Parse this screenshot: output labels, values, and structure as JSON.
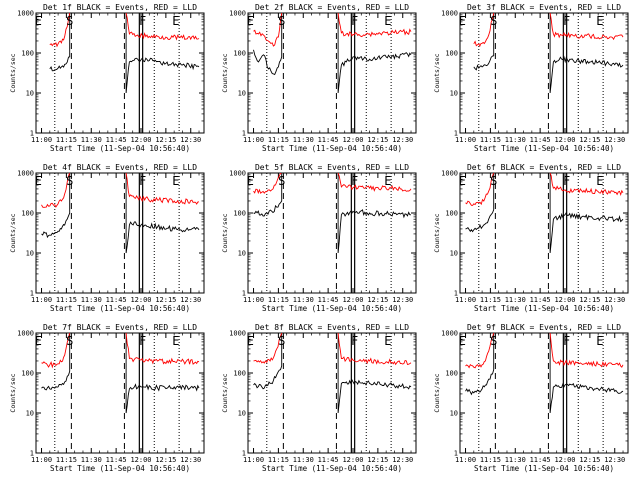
{
  "figure": {
    "xlabel": "Start Time (11-Sep-04 10:56:40)",
    "ylabel": "Counts/sec",
    "x_ticks": [
      "11:00",
      "11:15",
      "11:30",
      "11:45",
      "12:00",
      "12:15",
      "12:30"
    ],
    "y_ticks": [
      "1",
      "10",
      "100",
      "1000"
    ],
    "colors": {
      "events": "#000000",
      "lld": "#ff0000"
    }
  },
  "chart_data": [
    {
      "type": "line",
      "title": "Det 1f BLACK = Events, RED = LLD",
      "y_scale": "log",
      "ylim": [
        1,
        1000
      ],
      "xlim": [
        "10:56:40",
        "12:38:00"
      ],
      "series": [
        {
          "color": "#000000",
          "x": [
            "11:05",
            "11:08",
            "11:10",
            "11:12",
            "11:14",
            "11:17",
            "11:51",
            "11:53",
            "11:55",
            "11:58",
            "12:05",
            "12:15",
            "12:25",
            "12:35"
          ],
          "y": [
            40,
            38,
            42,
            45,
            52,
            80,
            10,
            60,
            65,
            70,
            65,
            55,
            50,
            45
          ]
        },
        {
          "color": "#ff0000",
          "x": [
            "11:05",
            "11:08",
            "11:10",
            "11:12",
            "11:14",
            "11:17",
            "11:51",
            "11:53",
            "11:55",
            "11:58",
            "12:05",
            "12:15",
            "12:25",
            "12:35"
          ],
          "y": [
            160,
            165,
            170,
            180,
            260,
            1000,
            1000,
            300,
            290,
            280,
            260,
            250,
            240,
            230
          ]
        }
      ],
      "markers": [
        {
          "text": "E",
          "time": "10:58"
        },
        {
          "text": "S",
          "time": "11:17"
        },
        {
          "text": "F",
          "time": "12:01"
        },
        {
          "text": "E",
          "time": "12:21"
        }
      ],
      "vlines": {
        "dotted": [
          "11:08",
          "12:08",
          "12:23"
        ],
        "dashed": [
          "11:18",
          "11:50"
        ],
        "solid": [
          "11:59",
          "12:01"
        ]
      }
    },
    {
      "type": "line",
      "title": "Det 2f BLACK = Events, RED = LLD",
      "y_scale": "log",
      "ylim": [
        1,
        1000
      ],
      "xlim": [
        "10:56:40",
        "12:38:00"
      ],
      "series": [
        {
          "color": "#000000",
          "x": [
            "11:00",
            "11:03",
            "11:06",
            "11:09",
            "11:12",
            "11:15",
            "11:17",
            "11:51",
            "11:53",
            "11:56",
            "12:00",
            "12:10",
            "12:20",
            "12:35"
          ],
          "y": [
            120,
            60,
            90,
            40,
            30,
            45,
            80,
            10,
            50,
            60,
            80,
            70,
            80,
            90
          ]
        },
        {
          "color": "#ff0000",
          "x": [
            "11:00",
            "11:03",
            "11:06",
            "11:09",
            "11:12",
            "11:15",
            "11:17",
            "11:51",
            "11:53",
            "11:56",
            "12:00",
            "12:10",
            "12:20",
            "12:35"
          ],
          "y": [
            350,
            300,
            280,
            200,
            150,
            250,
            1000,
            1000,
            320,
            300,
            290,
            300,
            320,
            340
          ]
        }
      ],
      "markers": [
        {
          "text": "E",
          "time": "10:58"
        },
        {
          "text": "S",
          "time": "11:17"
        },
        {
          "text": "F",
          "time": "12:01"
        },
        {
          "text": "E",
          "time": "12:21"
        }
      ],
      "vlines": {
        "dotted": [
          "11:08",
          "12:08",
          "12:23"
        ],
        "dashed": [
          "11:18",
          "11:50"
        ],
        "solid": [
          "11:59",
          "12:01"
        ]
      }
    },
    {
      "type": "line",
      "title": "Det 3f BLACK = Events, RED = LLD",
      "y_scale": "log",
      "ylim": [
        1,
        1000
      ],
      "xlim": [
        "10:56:40",
        "12:38:00"
      ],
      "series": [
        {
          "color": "#000000",
          "x": [
            "11:05",
            "11:08",
            "11:10",
            "11:12",
            "11:14",
            "11:17",
            "11:51",
            "11:53",
            "11:55",
            "11:58",
            "12:05",
            "12:15",
            "12:25",
            "12:35"
          ],
          "y": [
            45,
            42,
            45,
            50,
            55,
            85,
            10,
            60,
            62,
            70,
            65,
            60,
            55,
            50
          ]
        },
        {
          "color": "#ff0000",
          "x": [
            "11:05",
            "11:08",
            "11:10",
            "11:12",
            "11:14",
            "11:17",
            "11:51",
            "11:53",
            "11:55",
            "11:58",
            "12:05",
            "12:15",
            "12:25",
            "12:35"
          ],
          "y": [
            170,
            170,
            175,
            190,
            280,
            1000,
            1000,
            300,
            290,
            280,
            270,
            260,
            255,
            250
          ]
        }
      ],
      "markers": [
        {
          "text": "E",
          "time": "10:58"
        },
        {
          "text": "S",
          "time": "11:17"
        },
        {
          "text": "F",
          "time": "12:01"
        },
        {
          "text": "E",
          "time": "12:21"
        }
      ],
      "vlines": {
        "dotted": [
          "11:08",
          "12:08",
          "12:23"
        ],
        "dashed": [
          "11:18",
          "11:50"
        ],
        "solid": [
          "11:59",
          "12:01"
        ]
      }
    },
    {
      "type": "line",
      "title": "Det 4f BLACK = Events, RED = LLD",
      "y_scale": "log",
      "ylim": [
        1,
        1000
      ],
      "xlim": [
        "10:56:40",
        "12:38:00"
      ],
      "series": [
        {
          "color": "#000000",
          "x": [
            "11:00",
            "11:05",
            "11:08",
            "11:10",
            "11:12",
            "11:14",
            "11:17",
            "11:51",
            "11:53",
            "11:56",
            "12:00",
            "12:10",
            "12:20",
            "12:35"
          ],
          "y": [
            30,
            28,
            32,
            35,
            40,
            50,
            100,
            10,
            50,
            60,
            50,
            45,
            40,
            38
          ]
        },
        {
          "color": "#ff0000",
          "x": [
            "11:00",
            "11:05",
            "11:08",
            "11:10",
            "11:12",
            "11:14",
            "11:17",
            "11:51",
            "11:53",
            "11:56",
            "12:00",
            "12:10",
            "12:20",
            "12:35"
          ],
          "y": [
            160,
            150,
            160,
            170,
            200,
            300,
            1000,
            1000,
            260,
            240,
            230,
            210,
            200,
            190
          ]
        }
      ],
      "markers": [
        {
          "text": "E",
          "time": "10:58"
        },
        {
          "text": "S",
          "time": "11:17"
        },
        {
          "text": "F",
          "time": "12:01"
        },
        {
          "text": "E",
          "time": "12:21"
        }
      ],
      "vlines": {
        "dotted": [
          "11:08",
          "12:08",
          "12:23"
        ],
        "dashed": [
          "11:18",
          "11:50"
        ],
        "solid": [
          "11:59",
          "12:01"
        ]
      }
    },
    {
      "type": "line",
      "title": "Det 5f BLACK = Events, RED = LLD",
      "y_scale": "log",
      "ylim": [
        1,
        1000
      ],
      "xlim": [
        "10:56:40",
        "12:38:00"
      ],
      "series": [
        {
          "color": "#000000",
          "x": [
            "11:00",
            "11:05",
            "11:08",
            "11:11",
            "11:14",
            "11:17",
            "11:51",
            "11:53",
            "11:56",
            "12:00",
            "12:10",
            "12:20",
            "12:35"
          ],
          "y": [
            100,
            95,
            100,
            110,
            140,
            200,
            10,
            90,
            95,
            110,
            100,
            95,
            90
          ]
        },
        {
          "color": "#ff0000",
          "x": [
            "11:00",
            "11:05",
            "11:08",
            "11:11",
            "11:14",
            "11:17",
            "11:51",
            "11:53",
            "11:56",
            "12:00",
            "12:10",
            "12:20",
            "12:35"
          ],
          "y": [
            350,
            330,
            340,
            380,
            600,
            1000,
            1000,
            450,
            440,
            430,
            420,
            410,
            400
          ]
        }
      ],
      "markers": [
        {
          "text": "E",
          "time": "10:58"
        },
        {
          "text": "S",
          "time": "11:17"
        },
        {
          "text": "F",
          "time": "12:01"
        },
        {
          "text": "E",
          "time": "12:21"
        }
      ],
      "vlines": {
        "dotted": [
          "11:08",
          "12:08",
          "12:23"
        ],
        "dashed": [
          "11:18",
          "11:50"
        ],
        "solid": [
          "11:59",
          "12:01"
        ]
      }
    },
    {
      "type": "line",
      "title": "Det 6f BLACK = Events, RED = LLD",
      "y_scale": "log",
      "ylim": [
        1,
        1000
      ],
      "xlim": [
        "10:56:40",
        "12:38:00"
      ],
      "series": [
        {
          "color": "#000000",
          "x": [
            "11:00",
            "11:05",
            "11:08",
            "11:11",
            "11:14",
            "11:17",
            "11:51",
            "11:53",
            "11:56",
            "12:00",
            "12:10",
            "12:20",
            "12:35"
          ],
          "y": [
            40,
            38,
            42,
            50,
            70,
            120,
            10,
            70,
            75,
            90,
            80,
            75,
            70
          ]
        },
        {
          "color": "#ff0000",
          "x": [
            "11:00",
            "11:05",
            "11:08",
            "11:11",
            "11:14",
            "11:17",
            "11:51",
            "11:53",
            "11:56",
            "12:00",
            "12:10",
            "12:20",
            "12:35"
          ],
          "y": [
            180,
            170,
            180,
            200,
            350,
            1000,
            1000,
            420,
            400,
            380,
            360,
            340,
            320
          ]
        }
      ],
      "markers": [
        {
          "text": "E",
          "time": "10:58"
        },
        {
          "text": "S",
          "time": "11:17"
        },
        {
          "text": "F",
          "time": "12:01"
        },
        {
          "text": "E",
          "time": "12:21"
        }
      ],
      "vlines": {
        "dotted": [
          "11:08",
          "12:08",
          "12:23"
        ],
        "dashed": [
          "11:18",
          "11:50"
        ],
        "solid": [
          "11:59",
          "12:01"
        ]
      }
    },
    {
      "type": "line",
      "title": "Det 7f BLACK = Events, RED = LLD",
      "y_scale": "log",
      "ylim": [
        1,
        1000
      ],
      "xlim": [
        "10:56:40",
        "12:38:00"
      ],
      "series": [
        {
          "color": "#000000",
          "x": [
            "11:00",
            "11:05",
            "11:08",
            "11:10",
            "11:12",
            "11:14",
            "11:17",
            "11:51",
            "11:53",
            "11:56",
            "12:00",
            "12:10",
            "12:20",
            "12:35"
          ],
          "y": [
            42,
            40,
            42,
            45,
            50,
            60,
            110,
            10,
            40,
            45,
            45,
            42,
            45,
            42
          ]
        },
        {
          "color": "#ff0000",
          "x": [
            "11:00",
            "11:05",
            "11:08",
            "11:10",
            "11:12",
            "11:14",
            "11:17",
            "11:51",
            "11:53",
            "11:56",
            "12:00",
            "12:10",
            "12:20",
            "12:35"
          ],
          "y": [
            180,
            160,
            165,
            170,
            190,
            280,
            1000,
            1000,
            230,
            220,
            210,
            200,
            195,
            190
          ]
        }
      ],
      "markers": [
        {
          "text": "E",
          "time": "10:58"
        },
        {
          "text": "S",
          "time": "11:17"
        },
        {
          "text": "F",
          "time": "12:01"
        },
        {
          "text": "E",
          "time": "12:21"
        }
      ],
      "vlines": {
        "dotted": [
          "11:08",
          "12:08",
          "12:23"
        ],
        "dashed": [
          "11:18",
          "11:50"
        ],
        "solid": [
          "11:59",
          "12:01"
        ]
      }
    },
    {
      "type": "line",
      "title": "Det 8f BLACK = Events, RED = LLD",
      "y_scale": "log",
      "ylim": [
        1,
        1000
      ],
      "xlim": [
        "10:56:40",
        "12:38:00"
      ],
      "series": [
        {
          "color": "#000000",
          "x": [
            "11:00",
            "11:05",
            "11:08",
            "11:10",
            "11:12",
            "11:14",
            "11:17",
            "11:51",
            "11:53",
            "11:56",
            "12:00",
            "12:10",
            "12:20",
            "12:35"
          ],
          "y": [
            50,
            45,
            48,
            55,
            65,
            90,
            150,
            10,
            55,
            60,
            60,
            55,
            50,
            45
          ]
        },
        {
          "color": "#ff0000",
          "x": [
            "11:00",
            "11:05",
            "11:08",
            "11:10",
            "11:12",
            "11:14",
            "11:17",
            "11:51",
            "11:53",
            "11:56",
            "12:00",
            "12:10",
            "12:20",
            "12:35"
          ],
          "y": [
            200,
            180,
            185,
            200,
            240,
            400,
            1000,
            1000,
            230,
            220,
            210,
            200,
            190,
            180
          ]
        }
      ],
      "markers": [
        {
          "text": "E",
          "time": "10:58"
        },
        {
          "text": "S",
          "time": "11:17"
        },
        {
          "text": "F",
          "time": "12:01"
        },
        {
          "text": "E",
          "time": "12:21"
        }
      ],
      "vlines": {
        "dotted": [
          "11:08",
          "12:08",
          "12:23"
        ],
        "dashed": [
          "11:18",
          "11:50"
        ],
        "solid": [
          "11:59",
          "12:01"
        ]
      }
    },
    {
      "type": "line",
      "title": "Det 9f BLACK = Events, RED = LLD",
      "y_scale": "log",
      "ylim": [
        1,
        1000
      ],
      "xlim": [
        "10:56:40",
        "12:38:00"
      ],
      "series": [
        {
          "color": "#000000",
          "x": [
            "11:00",
            "11:05",
            "11:08",
            "11:10",
            "11:12",
            "11:14",
            "11:17",
            "11:51",
            "11:53",
            "11:56",
            "12:00",
            "12:10",
            "12:20",
            "12:35"
          ],
          "y": [
            35,
            32,
            35,
            40,
            50,
            70,
            120,
            10,
            45,
            48,
            50,
            45,
            40,
            35
          ]
        },
        {
          "color": "#ff0000",
          "x": [
            "11:00",
            "11:05",
            "11:08",
            "11:10",
            "11:12",
            "11:14",
            "11:17",
            "11:51",
            "11:53",
            "11:56",
            "12:00",
            "12:10",
            "12:20",
            "12:35"
          ],
          "y": [
            150,
            140,
            145,
            160,
            200,
            350,
            1000,
            1000,
            200,
            190,
            180,
            170,
            165,
            160
          ]
        }
      ],
      "markers": [
        {
          "text": "E",
          "time": "10:58"
        },
        {
          "text": "S",
          "time": "11:17"
        },
        {
          "text": "F",
          "time": "12:01"
        },
        {
          "text": "E",
          "time": "12:21"
        }
      ],
      "vlines": {
        "dotted": [
          "11:08",
          "12:08",
          "12:23"
        ],
        "dashed": [
          "11:18",
          "11:50"
        ],
        "solid": [
          "11:59",
          "12:01"
        ]
      }
    }
  ]
}
